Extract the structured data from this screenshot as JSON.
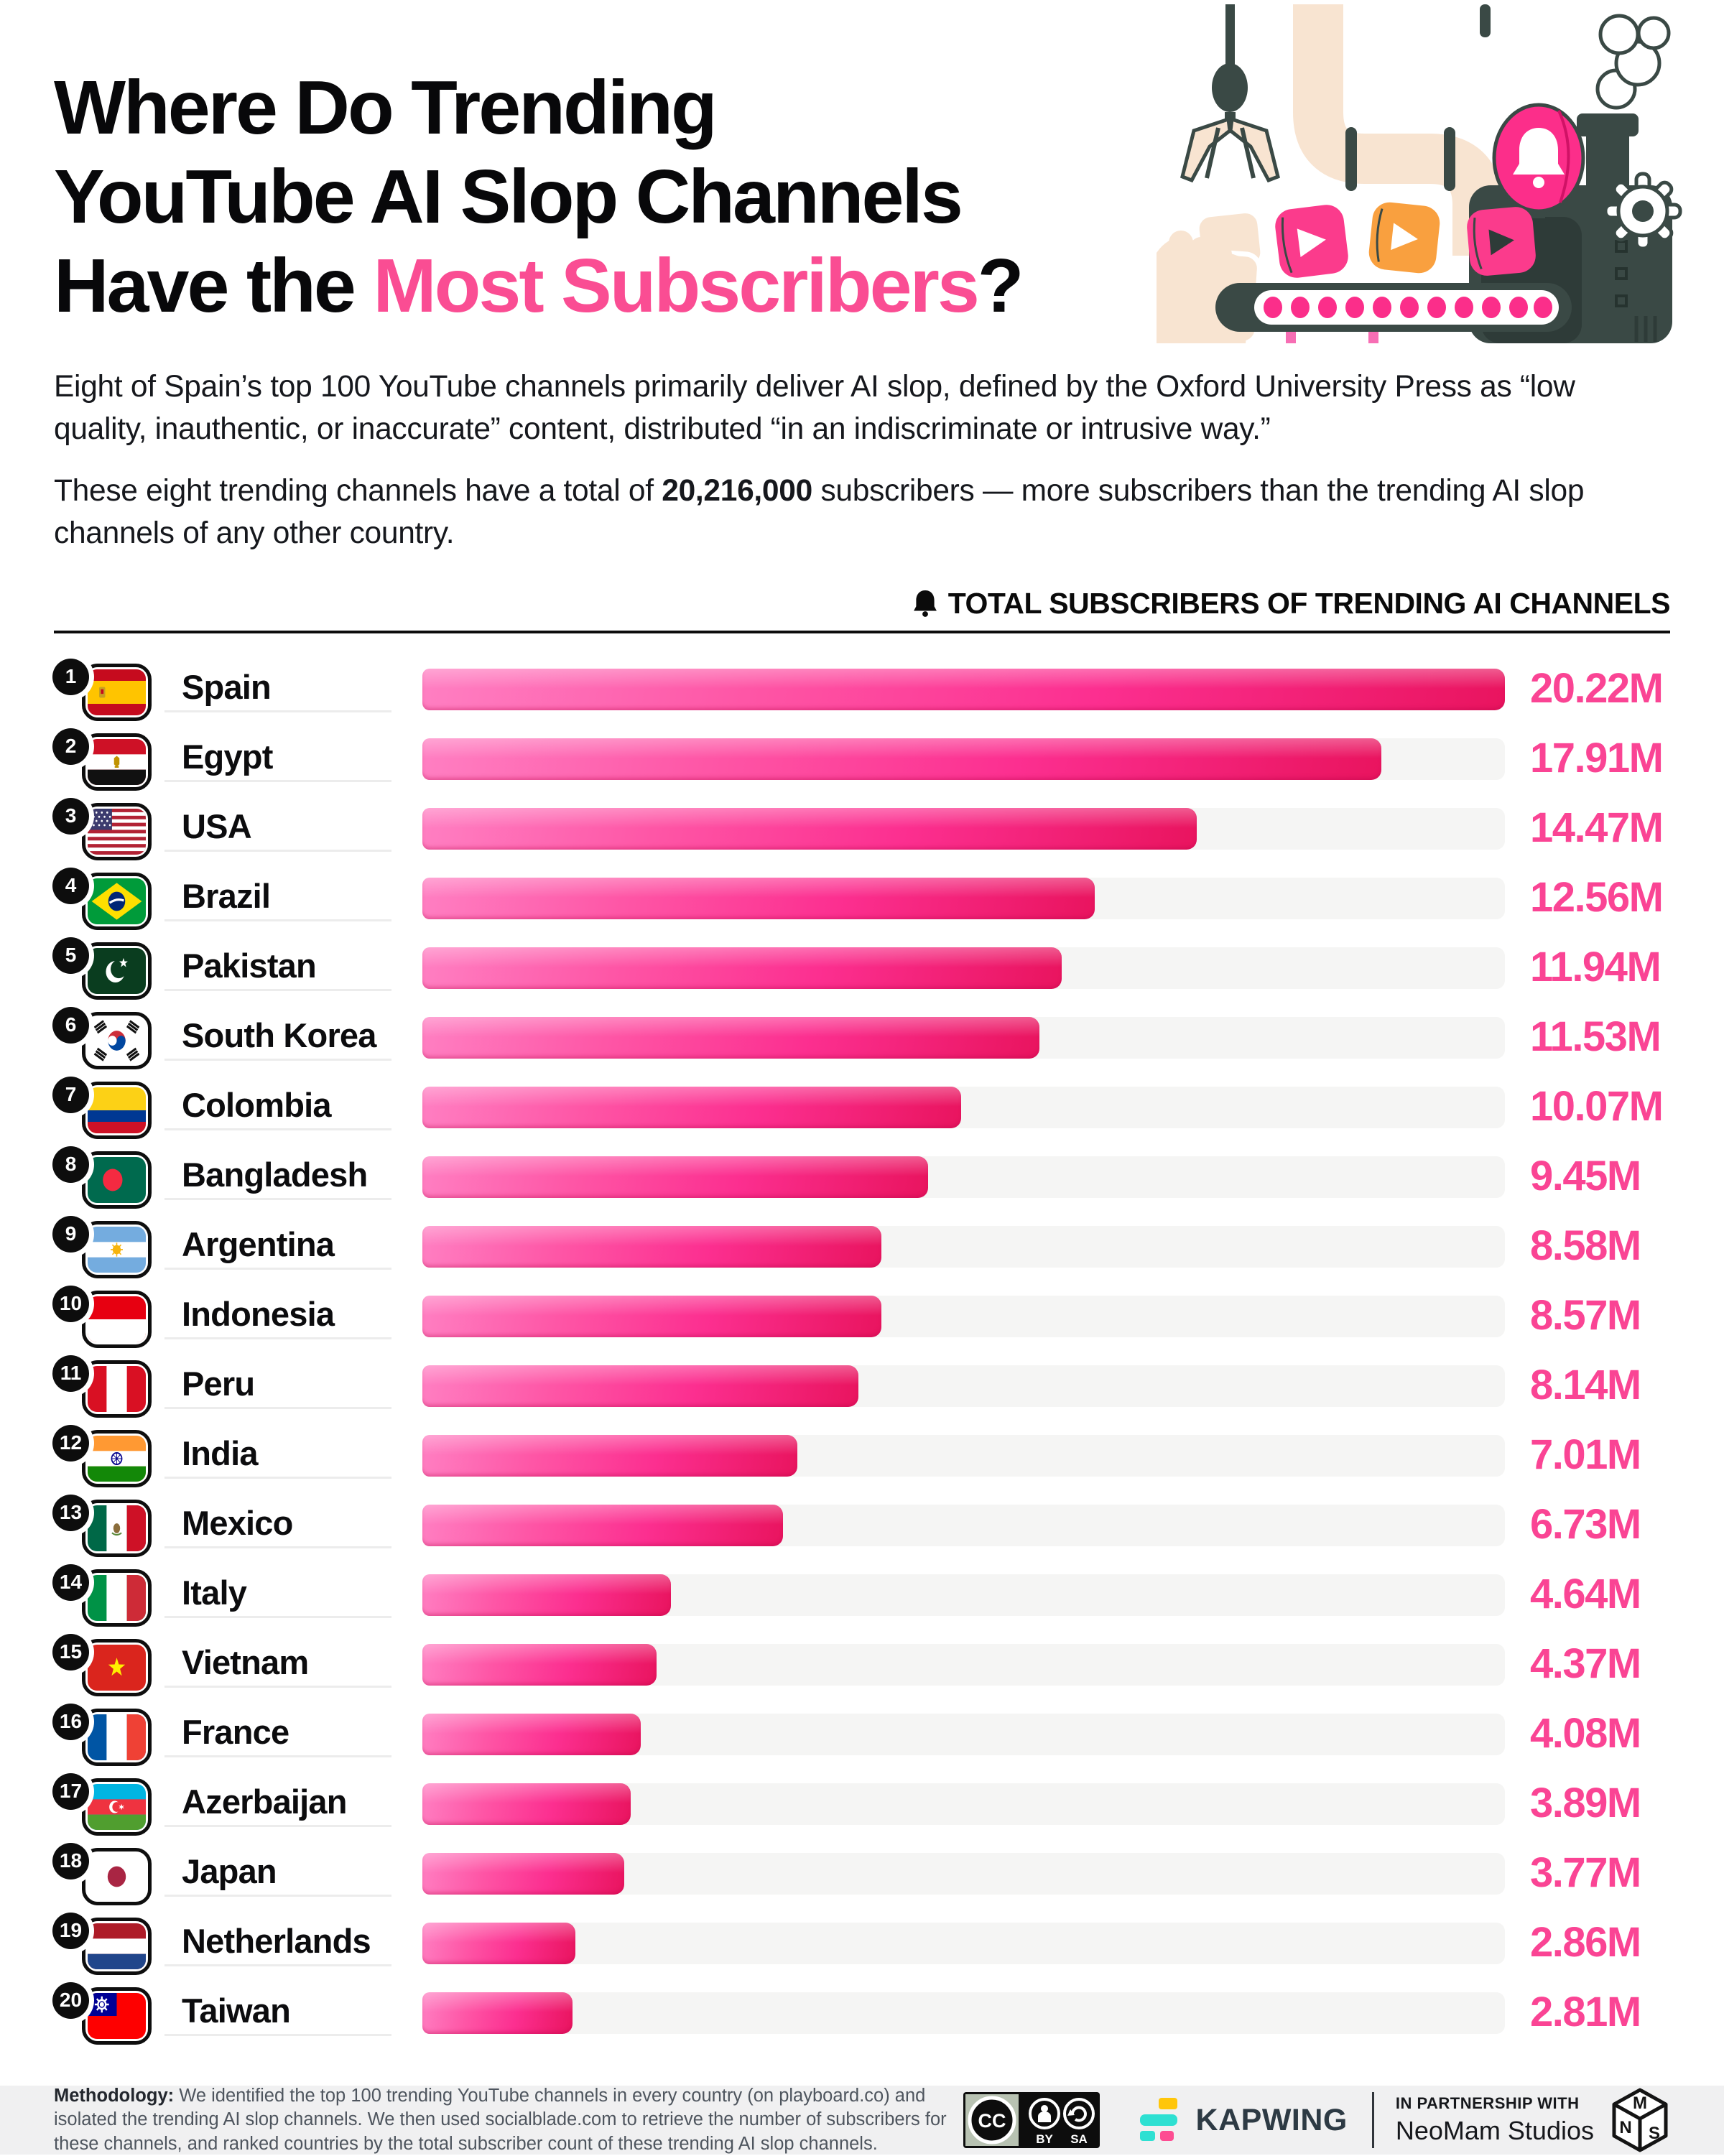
{
  "title": {
    "line1": "Where Do Trending",
    "line2": "YouTube AI Slop Channels",
    "line3_prefix": "Have the ",
    "line3_highlight": "Most Subscribers",
    "line3_suffix": "?"
  },
  "intro": {
    "p1": "Eight of Spain’s top 100 YouTube channels primarily deliver AI slop, defined by the Oxford University Press as “low quality, inauthentic, or inaccurate” content, distributed “in an indiscriminate or intrusive way.”",
    "p2_before": "These eight trending channels have a total of ",
    "p2_bold": "20,216,000",
    "p2_after": " subscribers — more subscribers than the trending AI slop channels of any other country."
  },
  "chart": {
    "header": "TOTAL SUBSCRIBERS OF TRENDING AI CHANNELS",
    "max_value": 20.22,
    "rows": [
      {
        "rank": 1,
        "country": "Spain",
        "flag": "es",
        "value": 20.22,
        "label": "20.22M"
      },
      {
        "rank": 2,
        "country": "Egypt",
        "flag": "eg",
        "value": 17.91,
        "label": "17.91M"
      },
      {
        "rank": 3,
        "country": "USA",
        "flag": "us",
        "value": 14.47,
        "label": "14.47M"
      },
      {
        "rank": 4,
        "country": "Brazil",
        "flag": "br",
        "value": 12.56,
        "label": "12.56M"
      },
      {
        "rank": 5,
        "country": "Pakistan",
        "flag": "pk",
        "value": 11.94,
        "label": "11.94M"
      },
      {
        "rank": 6,
        "country": "South Korea",
        "flag": "kr",
        "value": 11.53,
        "label": "11.53M"
      },
      {
        "rank": 7,
        "country": "Colombia",
        "flag": "co",
        "value": 10.07,
        "label": "10.07M"
      },
      {
        "rank": 8,
        "country": "Bangladesh",
        "flag": "bd",
        "value": 9.45,
        "label": "9.45M"
      },
      {
        "rank": 9,
        "country": "Argentina",
        "flag": "ar",
        "value": 8.58,
        "label": "8.58M"
      },
      {
        "rank": 10,
        "country": "Indonesia",
        "flag": "id",
        "value": 8.57,
        "label": "8.57M"
      },
      {
        "rank": 11,
        "country": "Peru",
        "flag": "pe",
        "value": 8.14,
        "label": "8.14M"
      },
      {
        "rank": 12,
        "country": "India",
        "flag": "in",
        "value": 7.01,
        "label": "7.01M"
      },
      {
        "rank": 13,
        "country": "Mexico",
        "flag": "mx",
        "value": 6.73,
        "label": "6.73M"
      },
      {
        "rank": 14,
        "country": "Italy",
        "flag": "it",
        "value": 4.64,
        "label": "4.64M"
      },
      {
        "rank": 15,
        "country": "Vietnam",
        "flag": "vn",
        "value": 4.37,
        "label": "4.37M"
      },
      {
        "rank": 16,
        "country": "France",
        "flag": "fr",
        "value": 4.08,
        "label": "4.08M"
      },
      {
        "rank": 17,
        "country": "Azerbaijan",
        "flag": "az",
        "value": 3.89,
        "label": "3.89M"
      },
      {
        "rank": 18,
        "country": "Japan",
        "flag": "jp",
        "value": 3.77,
        "label": "3.77M"
      },
      {
        "rank": 19,
        "country": "Netherlands",
        "flag": "nl",
        "value": 2.86,
        "label": "2.86M"
      },
      {
        "rank": 20,
        "country": "Taiwan",
        "flag": "tw",
        "value": 2.81,
        "label": "2.81M"
      }
    ]
  },
  "chart_data": {
    "type": "bar",
    "orientation": "horizontal",
    "title": "TOTAL SUBSCRIBERS OF TRENDING AI CHANNELS",
    "categories": [
      "Spain",
      "Egypt",
      "USA",
      "Brazil",
      "Pakistan",
      "South Korea",
      "Colombia",
      "Bangladesh",
      "Argentina",
      "Indonesia",
      "Peru",
      "India",
      "Mexico",
      "Italy",
      "Vietnam",
      "France",
      "Azerbaijan",
      "Japan",
      "Netherlands",
      "Taiwan"
    ],
    "values": [
      20.22,
      17.91,
      14.47,
      12.56,
      11.94,
      11.53,
      10.07,
      9.45,
      8.58,
      8.57,
      8.14,
      7.01,
      6.73,
      4.64,
      4.37,
      4.08,
      3.89,
      3.77,
      2.86,
      2.81
    ],
    "value_labels": [
      "20.22M",
      "17.91M",
      "14.47M",
      "12.56M",
      "11.94M",
      "11.53M",
      "10.07M",
      "9.45M",
      "8.58M",
      "8.57M",
      "8.14M",
      "7.01M",
      "6.73M",
      "4.64M",
      "4.37M",
      "4.08M",
      "3.89M",
      "3.77M",
      "2.86M",
      "2.81M"
    ],
    "unit": "millions of subscribers",
    "xlim": [
      0,
      20.22
    ],
    "grid": false,
    "legend": false,
    "bar_color": "#fc2e8a",
    "track_color": "#f5f5f4"
  },
  "footer": {
    "methodology_label": "Methodology:",
    "methodology_text": " We identified the top 100 trending YouTube channels in every country (on playboard.co) and isolated the trending AI slop channels. We then used socialblade.com to retrieve the number of subscribers for these channels, and ranked countries by the total subscriber count of these trending AI slop channels.",
    "license": {
      "cc": "CC",
      "by": "BY",
      "sa": "SA"
    },
    "kapwing_label": "KAPWING",
    "partnership_label": "IN PARTNERSHIP WITH",
    "neomam_label": "NeoMam Studios",
    "cube_letters": {
      "n": "N",
      "m": "M",
      "s": "S"
    }
  },
  "colors": {
    "accent_pink": "#fa4494",
    "title_highlight": "#fa4d93",
    "bar_main": "#fc2e8a",
    "bar_light": "#ff7fc2",
    "bar_dark_end": "#e9145f",
    "track": "#f5f5f4",
    "footer_bg": "#f0f0f1",
    "illustration_slate": "#3a4945",
    "illustration_cream": "#f8e4d1",
    "illustration_orange": "#f9a03f"
  }
}
